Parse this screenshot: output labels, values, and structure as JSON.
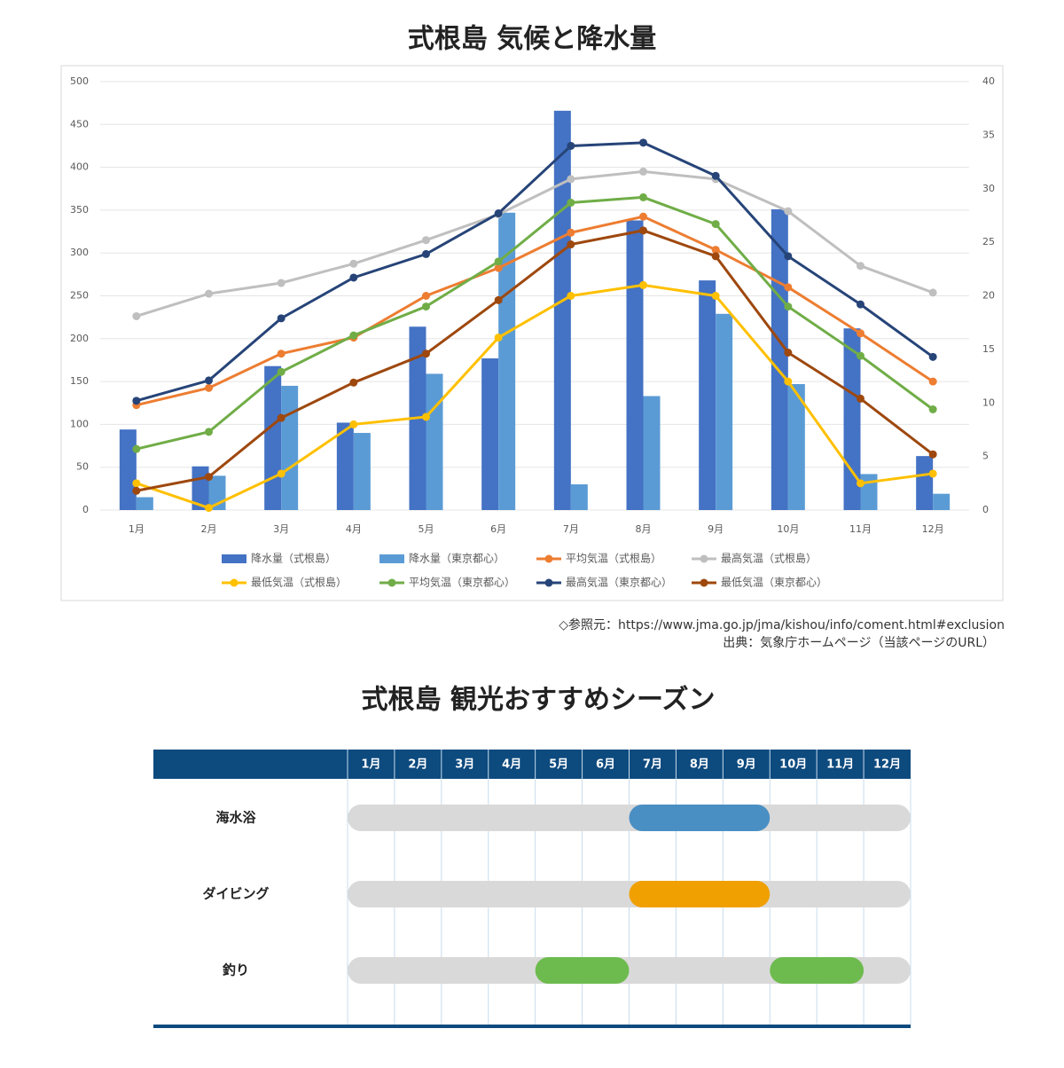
{
  "chart_data": {
    "type": "combo",
    "title": "式根島  気候と降水量",
    "categories": [
      "1月",
      "2月",
      "3月",
      "4月",
      "5月",
      "6月",
      "7月",
      "8月",
      "9月",
      "10月",
      "11月",
      "12月"
    ],
    "ylim": [
      0,
      500
    ],
    "yticks": [
      0,
      50,
      100,
      150,
      200,
      250,
      300,
      350,
      400,
      450,
      500
    ],
    "y2lim": [
      0,
      40
    ],
    "y2ticks": [
      0,
      5,
      10,
      15,
      20,
      25,
      30,
      35,
      40
    ],
    "grid": true,
    "series": [
      {
        "name": "降水量（式根島）",
        "type": "bar",
        "color": "#4472c4",
        "values": [
          94,
          51,
          168,
          102,
          214,
          177,
          466,
          338,
          268,
          351,
          212,
          63
        ]
      },
      {
        "name": "降水量（東京都心）",
        "type": "bar",
        "color": "#5b9bd5",
        "values": [
          15,
          40,
          145,
          90,
          159,
          347,
          30,
          133,
          229,
          147,
          42,
          19
        ]
      },
      {
        "name": "平均気温（式根島）",
        "type": "line",
        "axis": "y2",
        "color": "#ed7d31",
        "values": [
          9.8,
          11.4,
          14.6,
          16.1,
          20.0,
          22.6,
          25.9,
          27.4,
          24.3,
          20.8,
          16.5,
          12.0
        ]
      },
      {
        "name": "最高気温（式根島）",
        "type": "line",
        "axis": "y2",
        "color": "#bfbfbf",
        "values": [
          18.1,
          20.2,
          21.2,
          23.0,
          25.2,
          27.6,
          30.9,
          31.6,
          30.9,
          27.9,
          22.8,
          20.3
        ]
      },
      {
        "name": "最低気温（式根島）",
        "type": "line",
        "axis": "y2",
        "color": "#ffc000",
        "values": [
          2.5,
          0.2,
          3.4,
          8.0,
          8.7,
          16.1,
          20.0,
          21.0,
          20.0,
          12.0,
          2.5,
          3.4
        ]
      },
      {
        "name": "平均気温（東京都心）",
        "type": "line",
        "axis": "y2",
        "color": "#70ad47",
        "values": [
          5.7,
          7.3,
          12.9,
          16.3,
          19.0,
          23.2,
          28.7,
          29.2,
          26.7,
          19.0,
          14.4,
          9.4
        ]
      },
      {
        "name": "最高気温（東京都心）",
        "type": "line",
        "axis": "y2",
        "color": "#264478",
        "values": [
          10.2,
          12.1,
          17.9,
          21.7,
          23.9,
          27.7,
          34.0,
          34.3,
          31.2,
          23.7,
          19.2,
          14.3
        ]
      },
      {
        "name": "最低気温（東京都心）",
        "type": "line",
        "axis": "y2",
        "color": "#9e480e",
        "values": [
          1.8,
          3.1,
          8.6,
          11.9,
          14.6,
          19.6,
          24.8,
          26.1,
          23.7,
          14.7,
          10.4,
          5.2
        ]
      }
    ]
  },
  "source": {
    "reference": "◇参照元：https://www.jma.go.jp/jma/kishou/info/coment.html#exclusion",
    "credit": "出典：気象庁ホームページ（当該ページのURL）"
  },
  "season": {
    "title": "式根島  観光おすすめシーズン",
    "months": [
      "1月",
      "2月",
      "3月",
      "4月",
      "5月",
      "6月",
      "7月",
      "8月",
      "9月",
      "10月",
      "11月",
      "12月"
    ],
    "rows": [
      {
        "label": "海水浴",
        "periods": [
          {
            "start": 7,
            "end": 9,
            "color": "#4a8fc4"
          }
        ]
      },
      {
        "label": "ダイビング",
        "periods": [
          {
            "start": 7,
            "end": 9,
            "color": "#f0a000"
          }
        ]
      },
      {
        "label": "釣り",
        "periods": [
          {
            "start": 5,
            "end": 6,
            "color": "#6dbb4e"
          },
          {
            "start": 10,
            "end": 11,
            "color": "#6dbb4e"
          }
        ]
      }
    ]
  }
}
